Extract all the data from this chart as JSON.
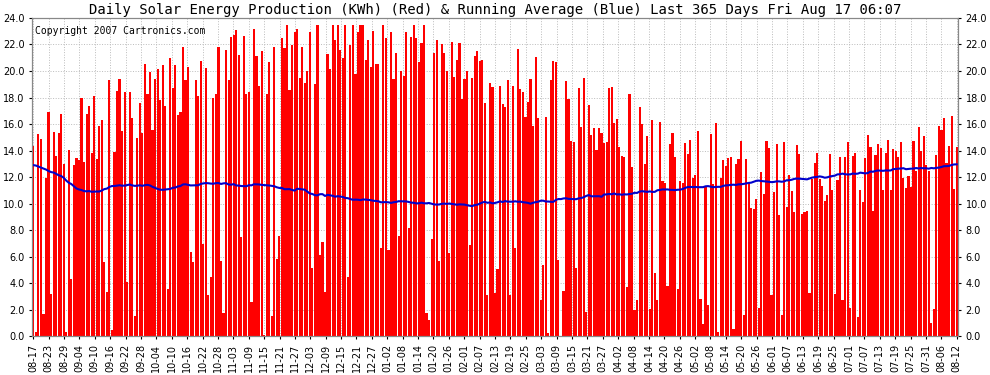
{
  "title": "Daily Solar Energy Production (KWh) (Red) & Running Average (Blue) Last 365 Days Fri Aug 17 06:07",
  "copyright_text": "Copyright 2007 Cartronics.com",
  "bar_color": "#ff0000",
  "line_color": "#0000cc",
  "background_color": "#ffffff",
  "grid_color": "#bbbbbb",
  "ylim": [
    0,
    24.0
  ],
  "yticks": [
    0.0,
    2.0,
    4.0,
    6.0,
    8.0,
    10.0,
    12.0,
    14.0,
    16.0,
    18.0,
    20.0,
    22.0,
    24.0
  ],
  "x_labels": [
    "08-17",
    "08-23",
    "08-29",
    "09-04",
    "09-10",
    "09-16",
    "09-22",
    "09-28",
    "10-04",
    "10-10",
    "10-16",
    "10-22",
    "10-28",
    "11-03",
    "11-09",
    "11-15",
    "11-21",
    "11-27",
    "12-03",
    "12-09",
    "12-15",
    "12-21",
    "12-27",
    "01-02",
    "01-08",
    "01-14",
    "01-20",
    "01-26",
    "02-01",
    "02-07",
    "02-13",
    "02-19",
    "02-25",
    "03-03",
    "03-09",
    "03-15",
    "03-21",
    "03-27",
    "04-02",
    "04-08",
    "04-14",
    "04-20",
    "04-26",
    "05-02",
    "05-08",
    "05-14",
    "05-20",
    "05-26",
    "06-01",
    "06-07",
    "06-13",
    "06-19",
    "06-25",
    "07-01",
    "07-07",
    "07-13",
    "07-19",
    "07-25",
    "07-31",
    "08-06",
    "08-12"
  ],
  "title_fontsize": 10,
  "copyright_fontsize": 7,
  "tick_fontsize": 7,
  "line_width": 1.5,
  "bar_width": 0.85,
  "avg_curve": [
    13.0,
    12.5,
    11.8,
    11.0,
    10.8,
    11.2,
    11.5,
    11.3,
    11.0,
    11.2,
    11.4,
    11.5,
    11.6,
    11.5,
    11.4,
    11.3,
    11.2,
    11.0,
    10.8,
    10.6,
    10.5,
    10.4,
    10.3,
    10.2,
    10.1,
    10.0,
    10.0,
    10.0,
    10.0,
    10.0,
    10.0,
    10.1,
    10.1,
    10.2,
    10.3,
    10.4,
    10.5,
    10.6,
    10.7,
    10.8,
    10.9,
    11.0,
    11.1,
    11.2,
    11.3,
    11.4,
    11.5,
    11.6,
    11.7,
    11.8,
    11.9,
    12.0,
    12.1,
    12.2,
    12.3,
    12.4,
    12.5,
    12.6,
    12.7,
    12.8,
    13.0
  ]
}
